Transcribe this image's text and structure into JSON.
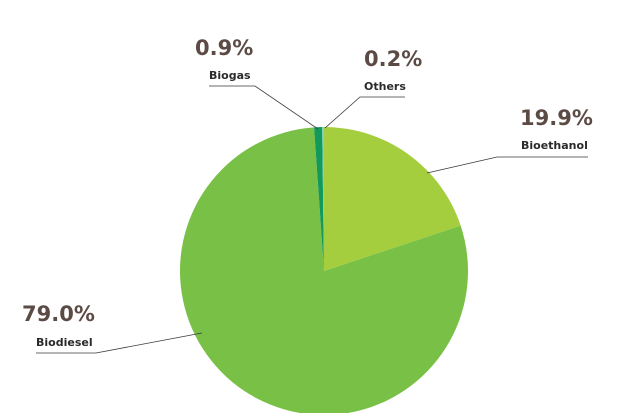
{
  "chart_data": {
    "type": "pie",
    "slices": [
      {
        "label": "Bioethanol",
        "value": 19.9,
        "value_label": "19.9%",
        "color": "#a5ce3e"
      },
      {
        "label": "Biodiesel",
        "value": 79.0,
        "value_label": "79.0%",
        "color": "#79c047"
      },
      {
        "label": "Biogas",
        "value": 0.9,
        "value_label": "0.9%",
        "color": "#139a5b"
      },
      {
        "label": "Others",
        "value": 0.2,
        "value_label": "0.2%",
        "color": "#7fd3c7"
      }
    ]
  }
}
